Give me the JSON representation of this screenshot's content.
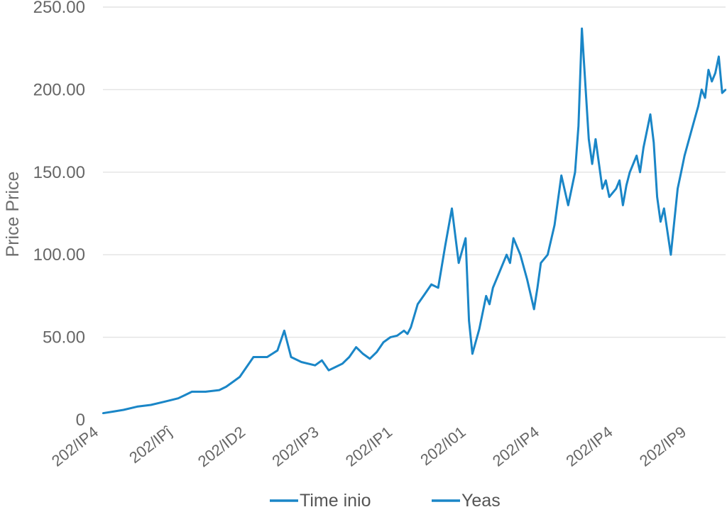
{
  "chart_data": {
    "type": "line",
    "ylabel": "Price Price",
    "ylim": [
      0,
      250
    ],
    "y_ticks": [
      "0",
      "50.00",
      "100.00",
      "150.00",
      "200.00",
      "250.00"
    ],
    "y_tick_values": [
      0,
      50,
      100,
      150,
      200,
      250
    ],
    "x_tick_labels": [
      "202/IP4",
      "202/IPĵ",
      "202/ID2",
      "202/IP3",
      "202/IP1",
      "202/I01",
      "202/IP4",
      "202/IP4",
      "202/IP9"
    ],
    "grid": true,
    "legend_position": "bottom",
    "legend": [
      "Time inio",
      "Yeas"
    ],
    "color": "#1a86c7",
    "series": [
      {
        "name": "Time inio",
        "x": [
          0,
          3,
          6,
          10,
          14,
          18,
          20,
          22,
          24,
          26,
          30,
          34,
          36,
          38,
          40,
          44,
          48,
          51,
          53,
          55,
          58,
          62,
          64,
          66,
          68,
          70,
          72,
          74,
          76,
          78,
          80,
          82,
          84,
          86,
          88,
          89,
          90,
          92,
          94,
          96,
          98,
          100,
          102,
          104,
          106,
          107,
          108,
          110,
          112,
          113,
          114,
          116,
          118,
          119,
          120,
          122,
          124,
          126,
          127,
          128,
          130,
          132,
          134,
          136,
          138,
          139,
          140,
          142,
          143,
          144,
          145,
          146,
          147,
          148,
          150,
          151,
          152,
          153,
          154,
          156,
          157,
          158,
          160,
          161,
          162,
          163,
          164,
          166,
          167,
          168,
          169,
          170,
          172,
          174,
          175,
          176,
          177,
          178,
          179,
          180,
          181,
          182
        ],
        "y": [
          4,
          5,
          6,
          8,
          9,
          11,
          12,
          13,
          15,
          17,
          17,
          18,
          20,
          23,
          26,
          38,
          38,
          42,
          54,
          38,
          35,
          33,
          36,
          30,
          32,
          34,
          38,
          44,
          40,
          37,
          41,
          47,
          50,
          51,
          54,
          52,
          56,
          70,
          76,
          82,
          80,
          105,
          128,
          95,
          110,
          60,
          40,
          55,
          75,
          70,
          80,
          90,
          100,
          95,
          110,
          100,
          85,
          67,
          80,
          95,
          100,
          118,
          148,
          130,
          150,
          178,
          237,
          170,
          155,
          170,
          155,
          140,
          145,
          135,
          140,
          145,
          130,
          142,
          150,
          160,
          150,
          165,
          185,
          168,
          135,
          120,
          128,
          100,
          120,
          140,
          150,
          160,
          175,
          190,
          200,
          195,
          212,
          205,
          210,
          220,
          198,
          200
        ]
      }
    ]
  }
}
